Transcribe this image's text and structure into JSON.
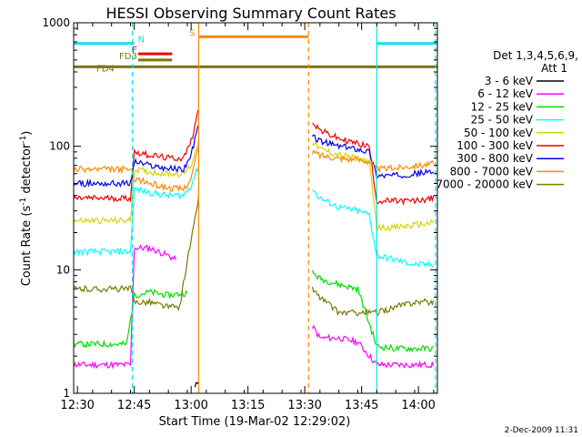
{
  "chart_data": {
    "type": "line",
    "title": "HESSI Observing Summary Count Rates",
    "xlabel": "Start Time (19-Mar-02 12:29:02)",
    "ylabel_main": "Count Rate (s",
    "ylabel_sup1": "-1",
    "ylabel_mid": " detector",
    "ylabel_sup2": "-1",
    "ylabel_end": ")",
    "yscale": "log",
    "ylim": [
      1,
      1000
    ],
    "xlim_minutes": [
      0,
      96
    ],
    "x_ticks": [
      {
        "label": "12:30",
        "minutes": 1
      },
      {
        "label": "12:45",
        "minutes": 16
      },
      {
        "label": "13:00",
        "minutes": 31
      },
      {
        "label": "13:15",
        "minutes": 46
      },
      {
        "label": "13:30",
        "minutes": 61
      },
      {
        "label": "13:45",
        "minutes": 76
      },
      {
        "label": "14:00",
        "minutes": 91
      }
    ],
    "y_ticks": [
      {
        "label": "1",
        "value": 1
      },
      {
        "label": "10",
        "value": 10
      },
      {
        "label": "100",
        "value": 100
      },
      {
        "label": "1000",
        "value": 1000
      }
    ],
    "legend": {
      "placement": "right",
      "header_line1": "Det 1,3,4,5,6,9,",
      "header_line2": "Att 1",
      "entries": [
        {
          "label": "3 - 6 keV",
          "color": "#000000"
        },
        {
          "label": "6 - 12 keV",
          "color": "#ff00ff"
        },
        {
          "label": "12 - 25 keV",
          "color": "#00dd00"
        },
        {
          "label": "25 - 50 keV",
          "color": "#00ffff"
        },
        {
          "label": "50 - 100 keV",
          "color": "#d4d400"
        },
        {
          "label": "100 - 300 keV",
          "color": "#ee0000"
        },
        {
          "label": "300 - 800 keV",
          "color": "#0000ee"
        },
        {
          "label": "800 - 7000 keV",
          "color": "#ff8800"
        },
        {
          "label": "7000 - 20000 keV",
          "color": "#7a7a00"
        }
      ]
    },
    "flag_lines": [
      {
        "label": "N",
        "color": "#00e5e5",
        "value": 680,
        "segments": [
          [
            0,
            16
          ],
          [
            80,
            96
          ]
        ]
      },
      {
        "label": "F",
        "color": "#ee0000",
        "value": 560,
        "segments": [
          [
            17,
            26
          ]
        ]
      },
      {
        "label": "FD3",
        "color": "#7a7a00",
        "value": 500,
        "segments": [
          [
            17,
            26
          ]
        ]
      },
      {
        "label": "FD4",
        "color": "#7a7a00",
        "value": 440,
        "segments": [
          [
            0,
            96
          ]
        ]
      },
      {
        "label": "S",
        "color": "#ff8800",
        "value": 770,
        "segments": [
          [
            33,
            62
          ]
        ]
      }
    ],
    "markers": [
      {
        "minutes": 15.5,
        "color": "#00e5e5",
        "style": "dashed"
      },
      {
        "minutes": 33,
        "color": "#ff8800",
        "style": "solid"
      },
      {
        "minutes": 62,
        "color": "#ff8800",
        "style": "dashed"
      },
      {
        "minutes": 80,
        "color": "#00e5e5",
        "style": "solid"
      },
      {
        "minutes": 95.5,
        "color": "#00e5e5",
        "style": "dashed"
      }
    ],
    "series": [
      {
        "name": "3 - 6 keV",
        "color": "#000000",
        "x": [
          32,
          33
        ],
        "y": [
          1.1,
          1.3
        ]
      },
      {
        "name": "6 - 12 keV",
        "color": "#ff00ff",
        "x": [
          0,
          15,
          16,
          20,
          25,
          27,
          63,
          65,
          70,
          75,
          80,
          85,
          90,
          95
        ],
        "y": [
          1.7,
          1.7,
          15,
          15,
          13,
          12,
          3.5,
          2.8,
          2.8,
          2.6,
          1.7,
          1.7,
          1.7,
          1.7
        ]
      },
      {
        "name": "12 - 25 keV",
        "color": "#00dd00",
        "x": [
          0,
          14,
          16,
          20,
          25,
          30,
          63,
          65,
          70,
          75,
          80,
          85,
          90,
          95
        ],
        "y": [
          2.5,
          2.5,
          6.2,
          6.6,
          6.2,
          6.5,
          9.5,
          8.5,
          7.6,
          7.0,
          2.4,
          2.3,
          2.3,
          2.3
        ]
      },
      {
        "name": "25 - 50 keV",
        "color": "#00ffff",
        "x": [
          0,
          15,
          16,
          20,
          25,
          29,
          31,
          33,
          63,
          65,
          70,
          75,
          78,
          80,
          85,
          90,
          95
        ],
        "y": [
          14,
          14,
          45,
          42,
          40,
          40,
          48,
          70,
          45,
          38,
          32,
          30,
          28,
          13,
          12,
          11,
          11
        ]
      },
      {
        "name": "50 - 100 keV",
        "color": "#d4d400",
        "x": [
          0,
          15,
          16,
          20,
          25,
          29,
          31,
          33,
          63,
          65,
          70,
          75,
          78,
          80,
          85,
          90,
          95
        ],
        "y": [
          25,
          25,
          65,
          62,
          60,
          60,
          70,
          110,
          110,
          95,
          85,
          80,
          75,
          22,
          22,
          23,
          24
        ]
      },
      {
        "name": "100 - 300 keV",
        "color": "#ee0000",
        "x": [
          0,
          15,
          16,
          20,
          25,
          29,
          31,
          33,
          63,
          65,
          70,
          75,
          78,
          80,
          85,
          90,
          95
        ],
        "y": [
          38,
          38,
          90,
          85,
          80,
          80,
          110,
          200,
          160,
          135,
          115,
          105,
          100,
          36,
          36,
          36,
          38
        ]
      },
      {
        "name": "300 - 800 keV",
        "color": "#0000ee",
        "x": [
          0,
          15,
          16,
          20,
          25,
          29,
          31,
          33,
          63,
          65,
          70,
          75,
          78,
          80,
          85,
          90,
          95
        ],
        "y": [
          50,
          50,
          75,
          70,
          66,
          65,
          85,
          150,
          120,
          110,
          100,
          95,
          90,
          58,
          58,
          60,
          62
        ]
      },
      {
        "name": "800 - 7000 keV",
        "color": "#ff8800",
        "x": [
          0,
          15,
          16,
          20,
          25,
          29,
          31,
          33,
          63,
          65,
          70,
          75,
          78,
          80,
          85,
          90,
          95
        ],
        "y": [
          65,
          65,
          55,
          50,
          46,
          45,
          55,
          100,
          90,
          85,
          80,
          78,
          76,
          65,
          67,
          70,
          72
        ]
      },
      {
        "name": "7000 - 20000 keV",
        "color": "#7a7a00",
        "x": [
          0,
          15,
          16,
          20,
          25,
          28,
          30,
          32,
          33,
          63,
          65,
          70,
          75,
          80,
          85,
          90,
          95
        ],
        "y": [
          7,
          7,
          5.5,
          5.5,
          5.0,
          5.0,
          12,
          25,
          40,
          7,
          6,
          4.5,
          4.5,
          4.5,
          5,
          5.5,
          5.5
        ]
      }
    ]
  },
  "footer": {
    "date_stamp": "2-Dec-2009 11:31"
  }
}
